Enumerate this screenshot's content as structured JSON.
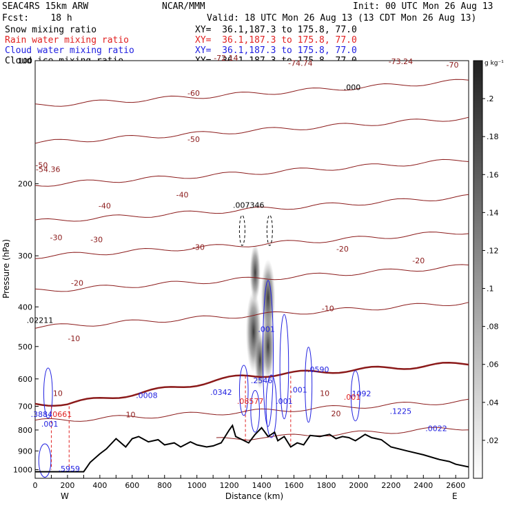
{
  "header": {
    "model": "SEAC4RS 15km ARW",
    "center": "NCAR/MMM",
    "init": "Init: 00 UTC Mon 26 Aug 13",
    "fcst": "Fcst:    18 h",
    "valid": "Valid: 18 UTC Mon 26 Aug 13 (13 CDT Mon 26 Aug 13)",
    "fields": [
      {
        "name": "Snow mixing ratio",
        "xy": "XY=  36.1,187.3 to 175.8, 77.0",
        "color": "#000000"
      },
      {
        "name": "Rain water mixing ratio",
        "xy": "XY=  36.1,187.3 to 175.8, 77.0",
        "color": "#e02020"
      },
      {
        "name": "Cloud water mixing ratio",
        "xy": "XY=  36.1,187.3 to 175.8, 77.0",
        "color": "#2020e0"
      },
      {
        "name": "Cloud ice mixing ratio",
        "xy": "XY=  36.1,187.3 to 175.8, 77.0",
        "color": "#000000"
      }
    ]
  },
  "chart_data": {
    "type": "cross-section",
    "xlabel": "Distance (km)",
    "ylabel": "Pressure (hPa)",
    "xlim": [
      0,
      2680
    ],
    "ylim": [
      1050,
      100
    ],
    "y_scale": "log",
    "x_ticks": [
      0,
      100,
      200,
      300,
      400,
      500,
      600,
      700,
      800,
      900,
      1000,
      1100,
      1200,
      1300,
      1400,
      1500,
      1600,
      1700,
      1800,
      1900,
      2000,
      2100,
      2200,
      2300,
      2400,
      2500,
      2600
    ],
    "x_tick_labels": [
      "0",
      "",
      "200",
      "",
      "400",
      "",
      "600",
      "",
      "800",
      "",
      "1000",
      "",
      "1200",
      "",
      "1400",
      "",
      "1600",
      "",
      "1800",
      "",
      "2000",
      "",
      "2200",
      "",
      "2400",
      "",
      "2600"
    ],
    "y_ticks": [
      100,
      200,
      300,
      400,
      500,
      600,
      700,
      800,
      900,
      1000
    ],
    "endpoints": {
      "left": "W",
      "right": "E"
    },
    "colorbar": {
      "units": "g kg⁻¹",
      "levels": [
        0.02,
        0.04,
        0.06,
        0.08,
        0.1,
        0.12,
        0.14,
        0.16,
        0.18,
        0.2
      ],
      "labels": [
        ".02",
        ".04",
        ".06",
        ".08",
        ".1",
        ".12",
        ".14",
        ".16",
        ".18",
        ".2"
      ]
    },
    "temperature_contours": {
      "color": "#8b1a1a",
      "levels_c": [
        -70,
        -60,
        -50,
        -40,
        -30,
        -20,
        -10,
        0,
        10,
        20
      ],
      "freezing_level_highlight": true,
      "labels": [
        {
          "text": "-70",
          "x": 2580,
          "p": 104
        },
        {
          "text": "-60",
          "x": 980,
          "p": 122
        },
        {
          "text": "-50",
          "x": 40,
          "p": 183
        },
        {
          "text": "-50",
          "x": 980,
          "p": 158
        },
        {
          "text": "-40",
          "x": 430,
          "p": 230
        },
        {
          "text": "-40",
          "x": 910,
          "p": 216
        },
        {
          "text": "-30",
          "x": 130,
          "p": 275
        },
        {
          "text": "-30",
          "x": 380,
          "p": 278
        },
        {
          "text": "-30",
          "x": 1010,
          "p": 290
        },
        {
          "text": "-20",
          "x": 260,
          "p": 355
        },
        {
          "text": "-20",
          "x": 1900,
          "p": 293
        },
        {
          "text": "-20",
          "x": 2370,
          "p": 313
        },
        {
          "text": "-10",
          "x": 240,
          "p": 485
        },
        {
          "text": "-10",
          "x": 1810,
          "p": 410
        },
        {
          "text": "10",
          "x": 140,
          "p": 660
        },
        {
          "text": "10",
          "x": 590,
          "p": 745
        },
        {
          "text": "10",
          "x": 1790,
          "p": 660
        },
        {
          "text": "20",
          "x": 1860,
          "p": 740
        }
      ]
    },
    "extrema_labels": [
      {
        "text": "-72.14",
        "x": 1180,
        "p": 100,
        "color": "#8b1a1a"
      },
      {
        "text": "-74.74",
        "x": 1640,
        "p": 103,
        "color": "#8b1a1a"
      },
      {
        "text": "-73.24",
        "x": 2260,
        "p": 102,
        "color": "#8b1a1a"
      },
      {
        "text": "-54.36",
        "x": 80,
        "p": 187,
        "color": "#8b1a1a"
      },
      {
        "text": ".000",
        "x": 1960,
        "p": 118,
        "color": "#000000"
      },
      {
        "text": ".007346",
        "x": 1320,
        "p": 229,
        "color": "#000000"
      },
      {
        "text": ".02211",
        "x": 30,
        "p": 438,
        "color": "#000000"
      },
      {
        "text": ".001",
        "x": 1430,
        "p": 460,
        "color": "#2020e0"
      },
      {
        "text": ".0590",
        "x": 1750,
        "p": 578,
        "color": "#2020e0"
      },
      {
        "text": ".0342",
        "x": 1150,
        "p": 657,
        "color": "#2020e0"
      },
      {
        "text": ".2546",
        "x": 1400,
        "p": 615,
        "color": "#2020e0"
      },
      {
        "text": ".0008",
        "x": 690,
        "p": 668,
        "color": "#2020e0"
      },
      {
        "text": ".001",
        "x": 1630,
        "p": 648,
        "color": "#2020e0"
      },
      {
        "text": ".1092",
        "x": 2010,
        "p": 662,
        "color": "#2020e0"
      },
      {
        "text": ".001",
        "x": 1960,
        "p": 675,
        "color": "#e02020"
      },
      {
        "text": ".08577",
        "x": 1330,
        "p": 690,
        "color": "#e02020"
      },
      {
        "text": ".001",
        "x": 1540,
        "p": 690,
        "color": "#2020e0"
      },
      {
        "text": ".1225",
        "x": 2260,
        "p": 731,
        "color": "#2020e0"
      },
      {
        "text": ".3884",
        "x": 40,
        "p": 743,
        "color": "#2020e0"
      },
      {
        "text": ".0661",
        "x": 160,
        "p": 743,
        "color": "#e02020"
      },
      {
        "text": ".001",
        "x": 90,
        "p": 785,
        "color": "#2020e0"
      },
      {
        "text": ".0022",
        "x": 2480,
        "p": 805,
        "color": "#2020e0"
      },
      {
        "text": ".5959",
        "x": 210,
        "p": 1010,
        "color": "#2020e0"
      }
    ],
    "terrain": {
      "x": [
        0,
        100,
        300,
        340,
        400,
        440,
        500,
        560,
        600,
        640,
        700,
        760,
        800,
        860,
        900,
        960,
        1000,
        1060,
        1100,
        1150,
        1200,
        1220,
        1240,
        1280,
        1320,
        1360,
        1400,
        1440,
        1480,
        1500,
        1540,
        1580,
        1620,
        1660,
        1700,
        1760,
        1820,
        1860,
        1900,
        1940,
        1980,
        2040,
        2080,
        2140,
        2200,
        2300,
        2400,
        2500,
        2560,
        2600,
        2680
      ],
      "p": [
        1012,
        1012,
        1012,
        960,
        915,
        890,
        840,
        880,
        840,
        830,
        855,
        845,
        870,
        860,
        880,
        855,
        870,
        880,
        875,
        860,
        800,
        780,
        830,
        845,
        860,
        820,
        790,
        830,
        810,
        850,
        830,
        880,
        860,
        870,
        825,
        830,
        820,
        840,
        830,
        835,
        850,
        820,
        835,
        845,
        880,
        900,
        920,
        945,
        955,
        970,
        985
      ]
    }
  }
}
